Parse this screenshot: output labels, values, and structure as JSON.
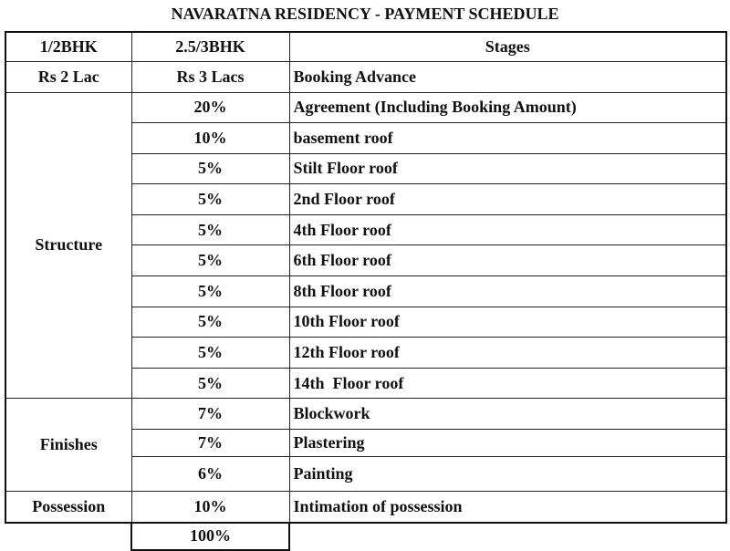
{
  "title": "NAVARATNA RESIDENCY - PAYMENT SCHEDULE",
  "table": {
    "header": [
      "1/2BHK",
      "2.5/3BHK",
      "Stages"
    ],
    "booking": [
      "Rs 2 Lac",
      "Rs 3 Lacs",
      "Booking Advance"
    ],
    "groups": [
      {
        "label": "Structure",
        "rows": [
          [
            "20%",
            "Agreement (Including Booking Amount)"
          ],
          [
            "10%",
            "basement roof"
          ],
          [
            "5%",
            "Stilt Floor roof"
          ],
          [
            "5%",
            "2nd Floor roof"
          ],
          [
            "5%",
            "4th Floor roof"
          ],
          [
            "5%",
            "6th Floor roof"
          ],
          [
            "5%",
            "8th Floor roof"
          ],
          [
            "5%",
            "10th Floor roof"
          ],
          [
            "5%",
            "12th Floor roof"
          ],
          [
            "5%",
            "14th  Floor roof"
          ]
        ]
      },
      {
        "label": "Finishes",
        "rows": [
          [
            "7%",
            "Blockwork"
          ],
          [
            "7%",
            "Plastering"
          ],
          [
            "6%",
            "Painting"
          ]
        ]
      },
      {
        "label": "Possession",
        "rows": [
          [
            "10%",
            "Intimation of possession"
          ]
        ]
      }
    ],
    "total": "100%"
  }
}
